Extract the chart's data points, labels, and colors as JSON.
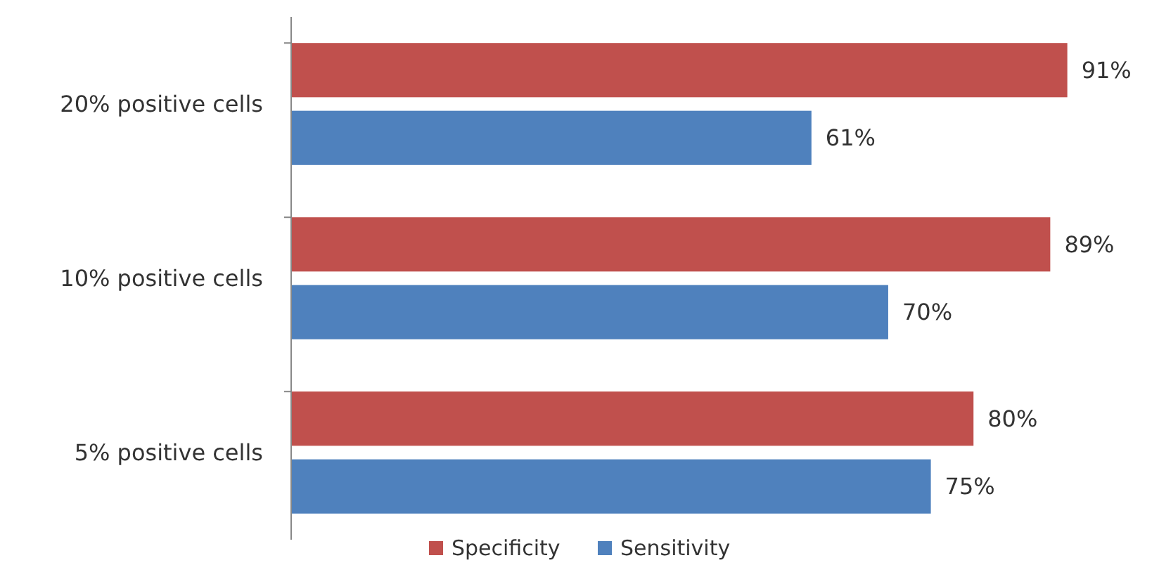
{
  "chart_data": {
    "type": "bar",
    "orientation": "horizontal",
    "categories": [
      "20% positive cells",
      "10% positive cells",
      "5% positive cells"
    ],
    "series": [
      {
        "name": "Specificity",
        "color": "#c0504d",
        "values": [
          91,
          89,
          80
        ],
        "value_labels": [
          "91%",
          "89%",
          "80%"
        ]
      },
      {
        "name": "Sensitivity",
        "color": "#4f81bd",
        "values": [
          61,
          70,
          75
        ],
        "value_labels": [
          "61%",
          "70%",
          "75%"
        ]
      }
    ],
    "legend": "bottom"
  }
}
